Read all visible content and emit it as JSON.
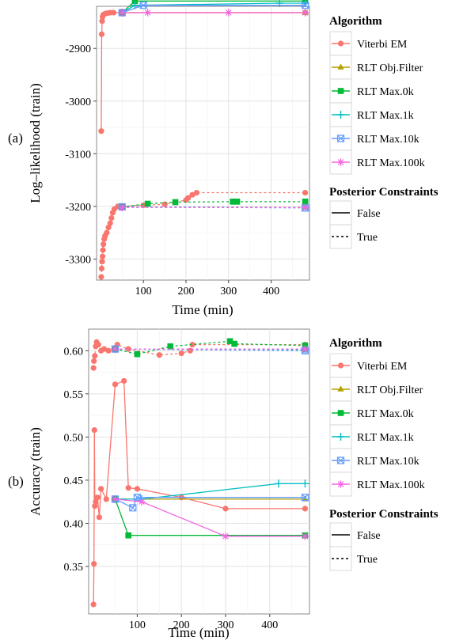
{
  "chart_data": [
    {
      "panel_label": "(a)",
      "type": "line",
      "xlabel": "Time (min)",
      "ylabel": "Log–likelihood (train)",
      "xlim": [
        -10,
        490
      ],
      "ylim": [
        -3340,
        -2820
      ],
      "xticks": [
        100,
        200,
        300,
        400
      ],
      "yticks": [
        -3300,
        -3200,
        -3100,
        -3000,
        -2900
      ],
      "grid": true,
      "series": [
        {
          "name": "Viterbi EM",
          "constraint": "False",
          "points": [
            [
              1,
              -3057
            ],
            [
              2,
              -2873
            ],
            [
              3,
              -2848
            ],
            [
              4,
              -2840
            ],
            [
              6,
              -2836
            ],
            [
              10,
              -2834
            ],
            [
              15,
              -2833
            ],
            [
              22,
              -2832
            ],
            [
              30,
              -2832
            ],
            [
              50,
              -2832
            ],
            [
              480,
              -2832
            ]
          ]
        },
        {
          "name": "RLT Obj.Filter",
          "constraint": "False",
          "points": [
            [
              50,
              -2832
            ],
            [
              480,
              -2832
            ]
          ]
        },
        {
          "name": "RLT Max.0k",
          "constraint": "False",
          "points": [
            [
              50,
              -2832
            ],
            [
              80,
              -2810
            ],
            [
              480,
              -2810
            ]
          ]
        },
        {
          "name": "RLT Max.1k",
          "constraint": "False",
          "points": [
            [
              50,
              -2832
            ],
            [
              80,
              -2818
            ],
            [
              420,
              -2814
            ],
            [
              480,
              -2814
            ]
          ]
        },
        {
          "name": "RLT Max.10k",
          "constraint": "False",
          "points": [
            [
              50,
              -2832
            ],
            [
              100,
              -2818
            ],
            [
              480,
              -2818
            ]
          ]
        },
        {
          "name": "RLT Max.100k",
          "constraint": "False",
          "points": [
            [
              50,
              -2832
            ],
            [
              110,
              -2832
            ],
            [
              300,
              -2832
            ],
            [
              480,
              -2832
            ]
          ]
        },
        {
          "name": "Viterbi EM",
          "constraint": "True",
          "points": [
            [
              1,
              -3334
            ],
            [
              2,
              -3318
            ],
            [
              3,
              -3305
            ],
            [
              4,
              -3295
            ],
            [
              5,
              -3283
            ],
            [
              6,
              -3272
            ],
            [
              8,
              -3262
            ],
            [
              10,
              -3256
            ],
            [
              14,
              -3250
            ],
            [
              18,
              -3240
            ],
            [
              22,
              -3232
            ],
            [
              25,
              -3222
            ],
            [
              28,
              -3212
            ],
            [
              32,
              -3205
            ],
            [
              40,
              -3200
            ],
            [
              50,
              -3200
            ],
            [
              100,
              -3198
            ],
            [
              150,
              -3196
            ],
            [
              200,
              -3188
            ],
            [
              205,
              -3184
            ],
            [
              215,
              -3178
            ],
            [
              225,
              -3174
            ],
            [
              480,
              -3174
            ]
          ]
        },
        {
          "name": "RLT Obj.Filter",
          "constraint": "True",
          "points": [
            [
              50,
              -3201
            ],
            [
              480,
              -3202
            ]
          ]
        },
        {
          "name": "RLT Max.0k",
          "constraint": "True",
          "points": [
            [
              50,
              -3201
            ],
            [
              110,
              -3195
            ],
            [
              175,
              -3192
            ],
            [
              310,
              -3191
            ],
            [
              320,
              -3191
            ],
            [
              480,
              -3191
            ]
          ]
        },
        {
          "name": "RLT Max.1k",
          "constraint": "True",
          "points": [
            [
              50,
              -3201
            ],
            [
              480,
              -3202
            ]
          ]
        },
        {
          "name": "RLT Max.10k",
          "constraint": "True",
          "points": [
            [
              50,
              -3201
            ],
            [
              480,
              -3203
            ]
          ]
        },
        {
          "name": "RLT Max.100k",
          "constraint": "True",
          "points": [
            [
              50,
              -3202
            ],
            [
              480,
              -3202
            ]
          ]
        }
      ]
    },
    {
      "panel_label": "(b)",
      "type": "line",
      "xlabel": "Time (min)",
      "ylabel": "Accuracy (train)",
      "xlim": [
        -10,
        490
      ],
      "ylim": [
        0.295,
        0.625
      ],
      "xticks": [
        100,
        200,
        300,
        400
      ],
      "yticks": [
        0.35,
        0.4,
        0.45,
        0.5,
        0.55,
        0.6
      ],
      "yticklabels": [
        "0.35",
        "0.40",
        "0.45",
        "0.50",
        "0.55",
        "0.60"
      ],
      "grid": true,
      "series": [
        {
          "name": "Viterbi EM",
          "constraint": "False",
          "points": [
            [
              1,
              0.306
            ],
            [
              2,
              0.353
            ],
            [
              3,
              0.508
            ],
            [
              4,
              0.42
            ],
            [
              6,
              0.425
            ],
            [
              10,
              0.43
            ],
            [
              14,
              0.407
            ],
            [
              18,
              0.44
            ],
            [
              30,
              0.428
            ],
            [
              50,
              0.561
            ],
            [
              70,
              0.565
            ],
            [
              80,
              0.441
            ],
            [
              100,
              0.44
            ],
            [
              200,
              0.43
            ],
            [
              300,
              0.417
            ],
            [
              480,
              0.417
            ]
          ]
        },
        {
          "name": "RLT Obj.Filter",
          "constraint": "False",
          "points": [
            [
              50,
              0.428
            ],
            [
              480,
              0.428
            ]
          ]
        },
        {
          "name": "RLT Max.0k",
          "constraint": "False",
          "points": [
            [
              50,
              0.428
            ],
            [
              80,
              0.386
            ],
            [
              480,
              0.386
            ]
          ]
        },
        {
          "name": "RLT Max.1k",
          "constraint": "False",
          "points": [
            [
              50,
              0.428
            ],
            [
              110,
              0.428
            ],
            [
              420,
              0.446
            ],
            [
              480,
              0.446
            ]
          ]
        },
        {
          "name": "RLT Max.10k",
          "constraint": "False",
          "points": [
            [
              50,
              0.428
            ],
            [
              90,
              0.418
            ],
            [
              100,
              0.43
            ],
            [
              480,
              0.43
            ]
          ]
        },
        {
          "name": "RLT Max.100k",
          "constraint": "False",
          "points": [
            [
              50,
              0.428
            ],
            [
              110,
              0.425
            ],
            [
              300,
              0.385
            ],
            [
              480,
              0.385
            ]
          ]
        },
        {
          "name": "Viterbi EM",
          "constraint": "True",
          "points": [
            [
              1,
              0.58
            ],
            [
              2,
              0.588
            ],
            [
              4,
              0.594
            ],
            [
              6,
              0.605
            ],
            [
              8,
              0.61
            ],
            [
              12,
              0.607
            ],
            [
              18,
              0.6
            ],
            [
              25,
              0.602
            ],
            [
              35,
              0.6
            ],
            [
              55,
              0.607
            ],
            [
              80,
              0.602
            ],
            [
              150,
              0.595
            ],
            [
              200,
              0.597
            ],
            [
              220,
              0.6
            ],
            [
              225,
              0.607
            ],
            [
              480,
              0.607
            ]
          ]
        },
        {
          "name": "RLT Obj.Filter",
          "constraint": "True",
          "points": [
            [
              50,
              0.602
            ],
            [
              480,
              0.601
            ]
          ]
        },
        {
          "name": "RLT Max.0k",
          "constraint": "True",
          "points": [
            [
              50,
              0.602
            ],
            [
              100,
              0.596
            ],
            [
              175,
              0.605
            ],
            [
              310,
              0.611
            ],
            [
              320,
              0.608
            ],
            [
              480,
              0.606
            ]
          ]
        },
        {
          "name": "RLT Max.1k",
          "constraint": "True",
          "points": [
            [
              50,
              0.602
            ],
            [
              480,
              0.601
            ]
          ]
        },
        {
          "name": "RLT Max.10k",
          "constraint": "True",
          "points": [
            [
              50,
              0.602
            ],
            [
              480,
              0.6
            ]
          ]
        },
        {
          "name": "RLT Max.100k",
          "constraint": "True",
          "points": [
            [
              50,
              0.602
            ],
            [
              480,
              0.602
            ]
          ]
        }
      ]
    }
  ],
  "legend": {
    "algorithm_title": "Algorithm",
    "algorithms": [
      {
        "name": "Viterbi EM",
        "color": "#F8766D",
        "shape": "circle"
      },
      {
        "name": "RLT Obj.Filter",
        "color": "#B79F00",
        "shape": "triangle"
      },
      {
        "name": "RLT Max.0k",
        "color": "#00BA38",
        "shape": "square"
      },
      {
        "name": "RLT Max.1k",
        "color": "#00BFC4",
        "shape": "plus"
      },
      {
        "name": "RLT Max.10k",
        "color": "#619CFF",
        "shape": "boxcross"
      },
      {
        "name": "RLT Max.100k",
        "color": "#F564E3",
        "shape": "asterisk"
      }
    ],
    "constraints_title": "Posterior Constraints",
    "constraints": [
      {
        "name": "False",
        "dash": "solid"
      },
      {
        "name": "True",
        "dash": "dashed"
      }
    ]
  }
}
